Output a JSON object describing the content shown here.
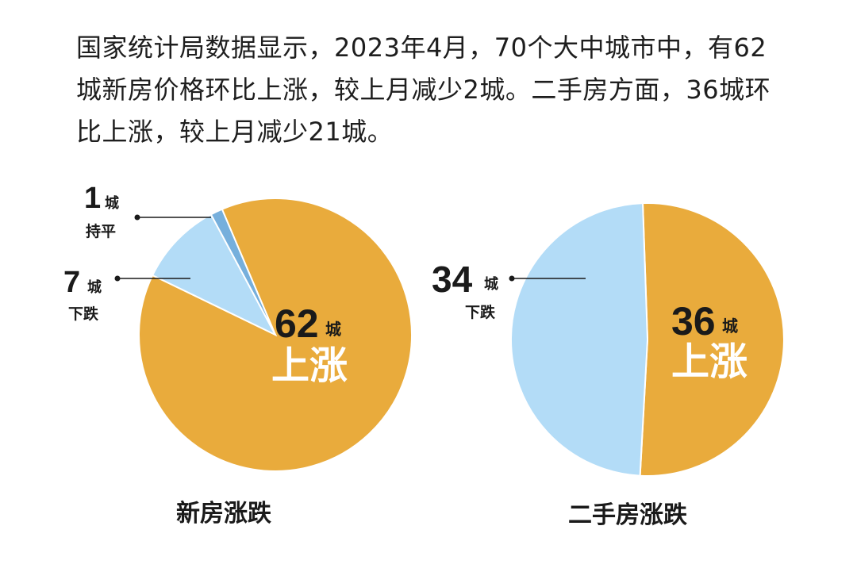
{
  "intro_text": "国家统计局数据显示，2023年4月，70个大中城市中，有62城新房价格环比上涨，较上月减少2城。二手房方面，36城环比上涨，较上月减少21城。",
  "colors": {
    "rise": "#e9ab3c",
    "fall": "#b3dcf7",
    "flat": "#76afdc",
    "label_inner": "#ffffff",
    "label_dark": "#1a1a1a"
  },
  "chart_data": [
    {
      "type": "pie",
      "title": "新房涨跌",
      "unit": "城",
      "slices": [
        {
          "name": "上涨",
          "value": 62
        },
        {
          "name": "下跌",
          "value": 7
        },
        {
          "name": "持平",
          "value": 1
        }
      ]
    },
    {
      "type": "pie",
      "title": "二手房涨跌",
      "unit": "城",
      "slices": [
        {
          "name": "上涨",
          "value": 36
        },
        {
          "name": "下跌",
          "value": 34
        }
      ]
    }
  ],
  "labels": {
    "new_rise_num": "62",
    "new_rise_unit": "城",
    "new_rise_text": "上涨",
    "new_fall_num": "7",
    "new_fall_unit": "城",
    "new_fall_text": "下跌",
    "new_flat_num": "1",
    "new_flat_unit": "城",
    "new_flat_text": "持平",
    "old_rise_num": "36",
    "old_rise_unit": "城",
    "old_rise_text": "上涨",
    "old_fall_num": "34",
    "old_fall_unit": "城",
    "old_fall_text": "下跌"
  }
}
